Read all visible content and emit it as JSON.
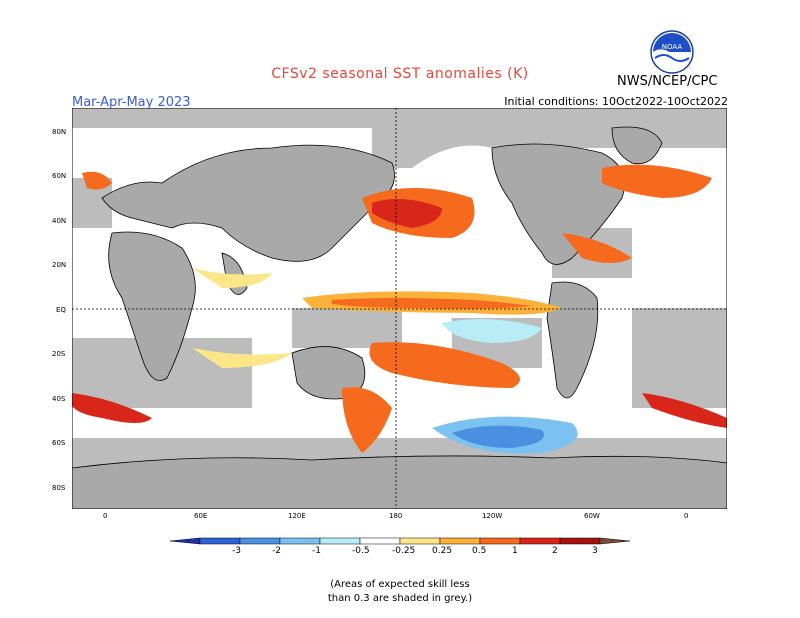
{
  "header": {
    "title": "CFSv2 seasonal SST anomalies (K)",
    "season": "Mar-Apr-May 2023",
    "initial_conditions": "Initial conditions: 10Oct2022-10Oct2022",
    "agency": "NWS/NCEP/CPC",
    "logo_text": "NOAA"
  },
  "map": {
    "lat_labels": [
      "80N",
      "60N",
      "40N",
      "20N",
      "EQ",
      "20S",
      "40S",
      "60S",
      "80S"
    ],
    "lon_labels": [
      "0",
      "60E",
      "120E",
      "180",
      "120W",
      "60W",
      "0"
    ],
    "colors": {
      "land": "#a9a9a9",
      "grey_mask": "#bcbcbc",
      "ocean_neutral": "#ffffff"
    }
  },
  "legend": {
    "labels": [
      "-3",
      "-2",
      "-1",
      "-0.5",
      "-0.25",
      "0.25",
      "0.5",
      "1",
      "2",
      "3"
    ],
    "colors": [
      "#1e2fa8",
      "#2f62d8",
      "#4a90e0",
      "#7cc2f0",
      "#b8ecf7",
      "#ffffff",
      "#fde68a",
      "#fbb13a",
      "#f56a1c",
      "#d8261a",
      "#a5120e",
      "#7a4a3a"
    ]
  },
  "note": {
    "line1": "(Areas of expected skill less",
    "line2": "than 0.3 are shaded in grey.)"
  }
}
